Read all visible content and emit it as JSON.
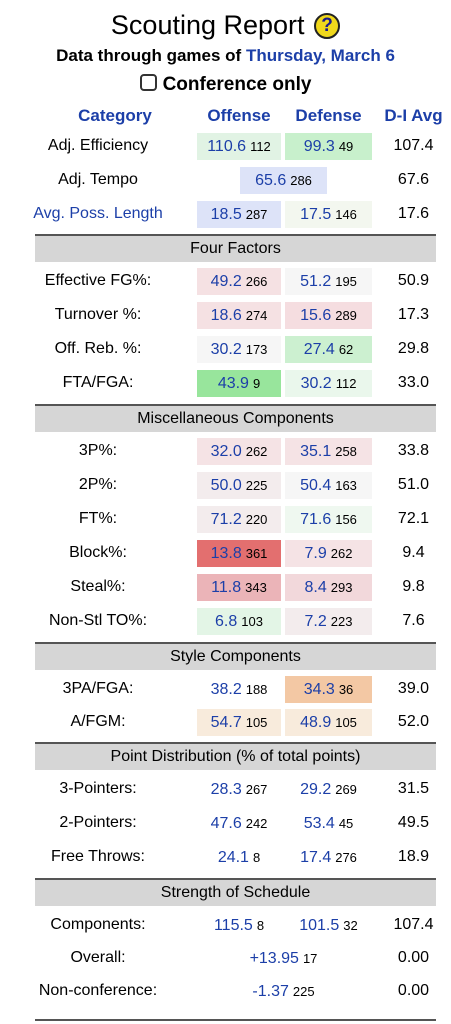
{
  "title": "Scouting Report",
  "help_symbol": "?",
  "subtitle_prefix": "Data through games of",
  "subtitle_date": "Thursday, March 6",
  "conference_only_label": "Conference only",
  "conference_only_checked": false,
  "headers": {
    "category": "Category",
    "offense": "Offense",
    "defense": "Defense",
    "avg": "D-I Avg"
  },
  "top_rows": [
    {
      "category": "Adj. Efficiency",
      "category_link": false,
      "off": "110.6",
      "off_rank": "112",
      "off_color": "#e1f3e4",
      "def": "99.3",
      "def_rank": "49",
      "def_color": "#c8f0cc",
      "avg": "107.4"
    },
    {
      "category": "Adj. Tempo",
      "category_link": false,
      "tempo": "65.6",
      "tempo_rank": "286",
      "tempo_color": "#dde3f8",
      "avg": "67.6"
    },
    {
      "category": "Avg. Poss. Length",
      "category_link": true,
      "off": "18.5",
      "off_rank": "287",
      "off_color": "#dde3f8",
      "def": "17.5",
      "def_rank": "146",
      "def_color": "#f3f7ef",
      "avg": "17.6"
    }
  ],
  "sections": [
    {
      "title": "Four Factors",
      "rows": [
        {
          "category": "Effective FG%:",
          "off": "49.2",
          "off_rank": "266",
          "off_color": "#f5e1e3",
          "def": "51.2",
          "def_rank": "195",
          "def_color": "#f6f6f6",
          "avg": "50.9"
        },
        {
          "category": "Turnover %:",
          "off": "18.6",
          "off_rank": "274",
          "off_color": "#f5e1e3",
          "def": "15.6",
          "def_rank": "289",
          "def_color": "#f5dde0",
          "avg": "17.3"
        },
        {
          "category": "Off. Reb. %:",
          "off": "30.2",
          "off_rank": "173",
          "off_color": "#f6f6f6",
          "def": "27.4",
          "def_rank": "62",
          "def_color": "#ccf0d0",
          "avg": "29.8"
        },
        {
          "category": "FTA/FGA:",
          "off": "43.9",
          "off_rank": "9",
          "off_color": "#98e59c",
          "def": "30.2",
          "def_rank": "112",
          "def_color": "#eaf7ec",
          "avg": "33.0"
        }
      ]
    },
    {
      "title": "Miscellaneous Components",
      "rows": [
        {
          "category": "3P%:",
          "off": "32.0",
          "off_rank": "262",
          "off_color": "#f5e3e5",
          "def": "35.1",
          "def_rank": "258",
          "def_color": "#f5e3e5",
          "avg": "33.8"
        },
        {
          "category": "2P%:",
          "off": "50.0",
          "off_rank": "225",
          "off_color": "#f3eced",
          "def": "50.4",
          "def_rank": "163",
          "def_color": "#f6f6f6",
          "avg": "51.0"
        },
        {
          "category": "FT%:",
          "off": "71.2",
          "off_rank": "220",
          "off_color": "#f3eced",
          "def": "71.6",
          "def_rank": "156",
          "def_color": "#eff8f0",
          "avg": "72.1"
        },
        {
          "category": "Block%:",
          "off": "13.8",
          "off_rank": "361",
          "off_color": "#e36f6f",
          "def": "7.9",
          "def_rank": "262",
          "def_color": "#f5e3e5",
          "avg": "9.4"
        },
        {
          "category": "Steal%:",
          "off": "11.8",
          "off_rank": "343",
          "off_color": "#ebb4b8",
          "def": "8.4",
          "def_rank": "293",
          "def_color": "#f2d8db",
          "avg": "9.8"
        },
        {
          "category": "Non-Stl TO%:",
          "off": "6.8",
          "off_rank": "103",
          "off_color": "#e3f5e6",
          "def": "7.2",
          "def_rank": "223",
          "def_color": "#f3eced",
          "avg": "7.6"
        }
      ]
    },
    {
      "title": "Style Components",
      "rows": [
        {
          "category": "3PA/FGA:",
          "off": "38.2",
          "off_rank": "188",
          "off_color": "#ffffff",
          "def": "34.3",
          "def_rank": "36",
          "def_color": "#f3c8a4",
          "avg": "39.0"
        },
        {
          "category": "A/FGM:",
          "off": "54.7",
          "off_rank": "105",
          "off_color": "#f8ebdc",
          "def": "48.9",
          "def_rank": "105",
          "def_color": "#f8ebdc",
          "avg": "52.0"
        }
      ]
    },
    {
      "title": "Point Distribution (% of total points)",
      "rows": [
        {
          "category": "3-Pointers:",
          "off": "28.3",
          "off_rank": "267",
          "off_color": "#ffffff",
          "def": "29.2",
          "def_rank": "269",
          "def_color": "#ffffff",
          "avg": "31.5"
        },
        {
          "category": "2-Pointers:",
          "off": "47.6",
          "off_rank": "242",
          "off_color": "#ffffff",
          "def": "53.4",
          "def_rank": "45",
          "def_color": "#ffffff",
          "avg": "49.5"
        },
        {
          "category": "Free Throws:",
          "off": "24.1",
          "off_rank": "8",
          "off_color": "#ffffff",
          "def": "17.4",
          "def_rank": "276",
          "def_color": "#ffffff",
          "avg": "18.9"
        }
      ]
    },
    {
      "title": "Strength of Schedule",
      "rows": [
        {
          "category": "Components:",
          "off": "115.5",
          "off_rank": "8",
          "off_color": "#ffffff",
          "def": "101.5",
          "def_rank": "32",
          "def_color": "#ffffff",
          "avg": "107.4"
        },
        {
          "category": "Overall:",
          "tempo": "+13.95",
          "tempo_rank": "17",
          "tempo_color": "#ffffff",
          "avg": "0.00"
        },
        {
          "category": "Non-conference:",
          "tempo": "-1.37",
          "tempo_rank": "225",
          "tempo_color": "#ffffff",
          "avg": "0.00"
        }
      ]
    }
  ]
}
